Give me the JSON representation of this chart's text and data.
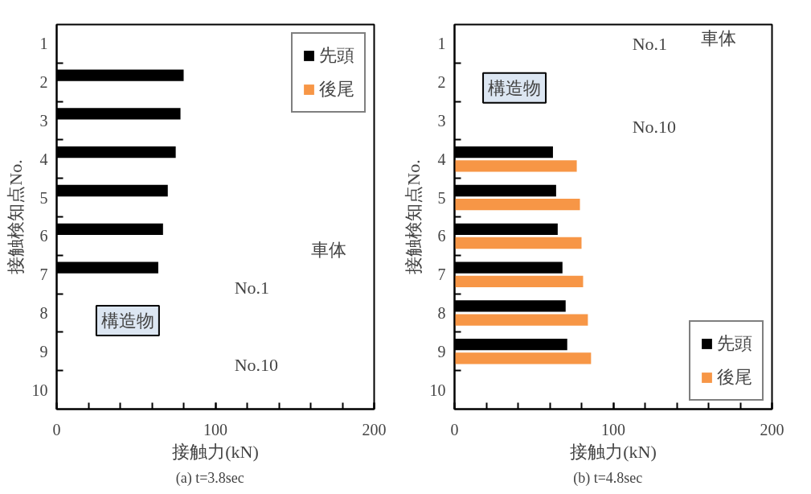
{
  "chart_data": [
    {
      "type": "bar",
      "orientation": "horizontal",
      "categories": [
        "1",
        "2",
        "3",
        "4",
        "5",
        "6",
        "7",
        "8",
        "9",
        "10"
      ],
      "series": [
        {
          "name": "先頭",
          "color": "#000000",
          "values": [
            null,
            80,
            78,
            75,
            70,
            67,
            64,
            null,
            null,
            null
          ]
        },
        {
          "name": "後尾",
          "color": "#f79646",
          "values": [
            null,
            null,
            null,
            null,
            null,
            null,
            null,
            null,
            null,
            null
          ]
        }
      ],
      "xlabel": "接触力(kN)",
      "ylabel": "接触検知点No.",
      "xlim": [
        0,
        200
      ],
      "xticks": [
        0,
        100,
        200
      ],
      "legend": "top right",
      "grid": false,
      "annotations": [
        "車体",
        "No.1",
        "No.10",
        "構造物",
        "(a)    t=3.8sec"
      ]
    },
    {
      "type": "bar",
      "orientation": "horizontal",
      "categories": [
        "1",
        "2",
        "3",
        "4",
        "5",
        "6",
        "7",
        "8",
        "9",
        "10"
      ],
      "series": [
        {
          "name": "先頭",
          "color": "#000000",
          "values": [
            null,
            null,
            null,
            62,
            64,
            65,
            68,
            70,
            71,
            null
          ]
        },
        {
          "name": "後尾",
          "color": "#f79646",
          "values": [
            null,
            null,
            null,
            77,
            79,
            80,
            81,
            84,
            86,
            null
          ]
        }
      ],
      "xlabel": "接触力(kN)",
      "ylabel": "接触検知点No.",
      "xlim": [
        0,
        200
      ],
      "xticks": [
        0,
        100,
        200
      ],
      "legend": "bottom right",
      "grid": false,
      "annotations": [
        "車体",
        "No.1",
        "No.10",
        "構造物",
        "(b)    t=4.8sec"
      ]
    }
  ]
}
